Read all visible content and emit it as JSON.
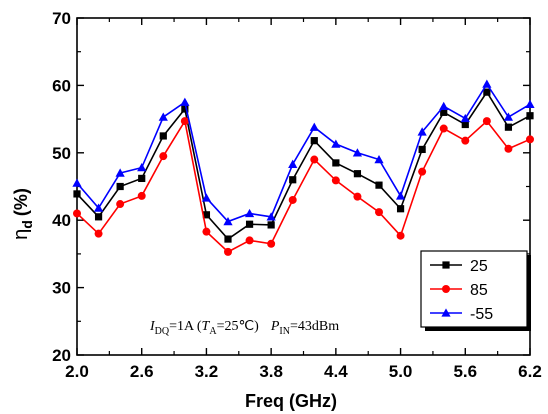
{
  "chart_data": {
    "type": "line",
    "xlabel": "Freq (GHz)",
    "ylabel_main": "η",
    "ylabel_sub": "d",
    "ylabel_unit": "(%)",
    "xlim": [
      2.0,
      6.2
    ],
    "ylim": [
      20,
      70
    ],
    "xticks": [
      2.0,
      2.6,
      3.2,
      3.8,
      4.4,
      5.0,
      5.6,
      6.2
    ],
    "xtick_labels": [
      "2.0",
      "2.6",
      "3.2",
      "3.8",
      "4.4",
      "5.0",
      "5.6",
      "6.2"
    ],
    "yticks": [
      20,
      30,
      40,
      50,
      60,
      70
    ],
    "ytick_labels": [
      "20",
      "30",
      "40",
      "50",
      "60",
      "70"
    ],
    "x": [
      2.0,
      2.2,
      2.4,
      2.6,
      2.8,
      3.0,
      3.2,
      3.4,
      3.6,
      3.8,
      4.0,
      4.2,
      4.4,
      4.6,
      4.8,
      5.0,
      5.2,
      5.4,
      5.6,
      5.8,
      6.0,
      6.2
    ],
    "series": [
      {
        "name": "25",
        "color": "#000000",
        "marker": "square",
        "values": [
          43.9,
          40.5,
          45.0,
          46.2,
          52.5,
          56.5,
          40.8,
          37.2,
          39.4,
          39.3,
          46.0,
          51.8,
          48.5,
          46.9,
          45.2,
          41.7,
          50.5,
          56.0,
          54.2,
          59.0,
          53.8,
          55.5
        ]
      },
      {
        "name": "85",
        "color": "#ff0000",
        "marker": "circle",
        "values": [
          41.0,
          38.0,
          42.4,
          43.6,
          49.5,
          54.7,
          38.3,
          35.3,
          37.0,
          36.5,
          43.0,
          49.0,
          45.9,
          43.5,
          41.2,
          37.7,
          47.2,
          53.6,
          51.8,
          54.7,
          50.6,
          52.0
        ]
      },
      {
        "name": "-55",
        "color": "#0000ff",
        "marker": "triangle",
        "values": [
          45.5,
          41.8,
          47.0,
          47.8,
          55.3,
          57.5,
          43.3,
          39.8,
          41.0,
          40.5,
          48.3,
          53.8,
          51.3,
          50.0,
          49.0,
          43.6,
          53.1,
          56.9,
          55.1,
          60.2,
          55.3,
          57.2
        ]
      }
    ],
    "legend": {
      "placement": "right-inside",
      "entries": [
        "25",
        "85",
        "-55"
      ]
    },
    "annotation": {
      "i": "I",
      "i_sub": "DQ",
      "i_val": "=1A (",
      "t": "T",
      "t_sub": "A",
      "t_val": "=25℃)",
      "p": "P",
      "p_sub": "IN",
      "p_val": "=43dBm"
    },
    "grid": false
  }
}
